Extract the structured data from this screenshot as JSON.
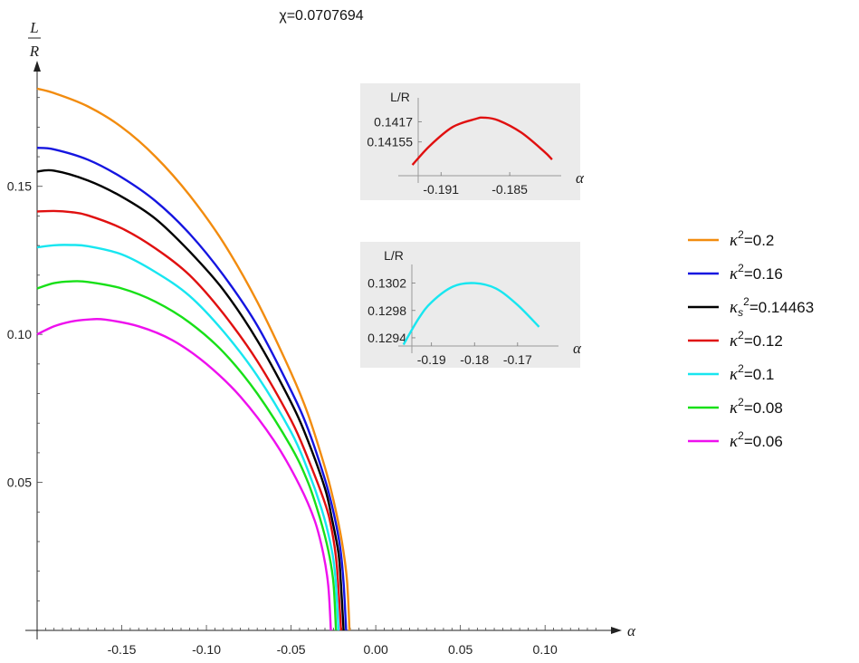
{
  "chart_data": [
    {
      "type": "line",
      "title": "χ=0.0707694",
      "xlabel": "α",
      "ylabel_num": "L",
      "ylabel_den": "R",
      "xlim": [
        -0.2,
        0.14
      ],
      "ylim": [
        0,
        0.19
      ],
      "x_ticks": [
        "-0.15",
        "-0.10",
        "-0.05",
        "0.00",
        "0.05",
        "0.10"
      ],
      "x_tick_values": [
        -0.15,
        -0.1,
        -0.05,
        0.0,
        0.05,
        0.1
      ],
      "y_ticks": [
        "0.05",
        "0.10",
        "0.15"
      ],
      "y_tick_values": [
        0.05,
        0.1,
        0.15
      ],
      "legend_position": "right",
      "series": [
        {
          "name": "κ²=0.2",
          "label_main": "κ",
          "label_sub": "",
          "label_sup": "2",
          "label_rest": "=0.2",
          "color": "#F28C0F",
          "x": [
            -0.2,
            -0.19,
            -0.17,
            -0.15,
            -0.13,
            -0.11,
            -0.09,
            -0.07,
            -0.05,
            -0.04,
            -0.03,
            -0.025,
            -0.02,
            -0.017,
            -0.0155
          ],
          "y": [
            0.183,
            0.1815,
            0.177,
            0.17,
            0.16,
            0.147,
            0.131,
            0.111,
            0.087,
            0.073,
            0.055,
            0.044,
            0.03,
            0.017,
            0.0
          ]
        },
        {
          "name": "κ²=0.16",
          "label_main": "κ",
          "label_sub": "",
          "label_sup": "2",
          "label_rest": "=0.16",
          "color": "#1515E0",
          "x": [
            -0.2,
            -0.19,
            -0.17,
            -0.15,
            -0.13,
            -0.11,
            -0.09,
            -0.07,
            -0.05,
            -0.04,
            -0.03,
            -0.025,
            -0.021,
            -0.019,
            -0.0175
          ],
          "y": [
            0.163,
            0.1625,
            0.159,
            0.153,
            0.145,
            0.134,
            0.12,
            0.103,
            0.081,
            0.068,
            0.051,
            0.04,
            0.028,
            0.016,
            0.0
          ]
        },
        {
          "name": "κₛ²=0.14463",
          "label_main": "κ",
          "label_sub": "s",
          "label_sup": "2",
          "label_rest": "=0.14463",
          "color": "#000000",
          "x": [
            -0.2,
            -0.19,
            -0.17,
            -0.15,
            -0.13,
            -0.11,
            -0.09,
            -0.07,
            -0.05,
            -0.04,
            -0.03,
            -0.026,
            -0.022,
            -0.0205,
            -0.019
          ],
          "y": [
            0.155,
            0.1553,
            0.152,
            0.1465,
            0.139,
            0.128,
            0.115,
            0.098,
            0.077,
            0.064,
            0.048,
            0.038,
            0.026,
            0.015,
            0.0
          ]
        },
        {
          "name": "κ²=0.12",
          "label_main": "κ",
          "label_sub": "",
          "label_sup": "2",
          "label_rest": "=0.12",
          "color": "#E01010",
          "x": [
            -0.2,
            -0.19,
            -0.18,
            -0.17,
            -0.15,
            -0.13,
            -0.11,
            -0.09,
            -0.07,
            -0.05,
            -0.04,
            -0.03,
            -0.026,
            -0.023,
            -0.0205
          ],
          "y": [
            0.1415,
            0.1417,
            0.1413,
            0.1402,
            0.1358,
            0.129,
            0.12,
            0.107,
            0.091,
            0.071,
            0.058,
            0.043,
            0.034,
            0.022,
            0.0
          ]
        },
        {
          "name": "κ²=0.1",
          "label_main": "κ",
          "label_sub": "",
          "label_sup": "2",
          "label_rest": "=0.1",
          "color": "#18E6F0",
          "x": [
            -0.2,
            -0.19,
            -0.18,
            -0.17,
            -0.15,
            -0.13,
            -0.11,
            -0.09,
            -0.07,
            -0.05,
            -0.04,
            -0.032,
            -0.027,
            -0.024,
            -0.022
          ],
          "y": [
            0.1294,
            0.1301,
            0.1302,
            0.1298,
            0.127,
            0.121,
            0.113,
            0.101,
            0.086,
            0.067,
            0.054,
            0.041,
            0.03,
            0.019,
            0.0
          ]
        },
        {
          "name": "κ²=0.08",
          "label_main": "κ",
          "label_sub": "",
          "label_sup": "2",
          "label_rest": "=0.08",
          "color": "#18E018",
          "x": [
            -0.2,
            -0.19,
            -0.18,
            -0.17,
            -0.15,
            -0.13,
            -0.11,
            -0.09,
            -0.07,
            -0.05,
            -0.04,
            -0.033,
            -0.028,
            -0.025,
            -0.0235
          ],
          "y": [
            0.1155,
            0.1173,
            0.1179,
            0.1177,
            0.1155,
            0.111,
            0.104,
            0.094,
            0.08,
            0.062,
            0.05,
            0.038,
            0.027,
            0.016,
            0.0
          ]
        },
        {
          "name": "κ²=0.06",
          "label_main": "κ",
          "label_sub": "",
          "label_sup": "2",
          "label_rest": "=0.06",
          "color": "#EE10EE",
          "x": [
            -0.2,
            -0.19,
            -0.18,
            -0.17,
            -0.16,
            -0.14,
            -0.12,
            -0.1,
            -0.08,
            -0.06,
            -0.045,
            -0.036,
            -0.031,
            -0.028,
            -0.0265
          ],
          "y": [
            0.1,
            0.1027,
            0.1043,
            0.105,
            0.105,
            0.1027,
            0.098,
            0.09,
            0.079,
            0.064,
            0.049,
            0.037,
            0.026,
            0.015,
            0.0
          ]
        }
      ]
    },
    {
      "type": "line",
      "title": "",
      "ylabel": "L/R",
      "xlabel": "α",
      "xlim": [
        -0.1945,
        -0.1805
      ],
      "ylim": [
        0.1413,
        0.14185
      ],
      "x_ticks": [
        "-0.191",
        "-0.185"
      ],
      "x_tick_values": [
        -0.191,
        -0.185
      ],
      "y_ticks": [
        "0.14155",
        "0.1417"
      ],
      "y_tick_values": [
        0.14155,
        0.1417
      ],
      "series": [
        {
          "color": "#E01010",
          "x": [
            -0.1935,
            -0.192,
            -0.19,
            -0.188,
            -0.1872,
            -0.186,
            -0.184,
            -0.182,
            -0.1813
          ],
          "y": [
            0.14138,
            0.14152,
            0.14166,
            0.14172,
            0.14173,
            0.14171,
            0.14162,
            0.14148,
            0.14142
          ]
        }
      ]
    },
    {
      "type": "line",
      "title": "",
      "ylabel": "L/R",
      "xlabel": "α",
      "xlim": [
        -0.1975,
        -0.1605
      ],
      "ylim": [
        0.12928,
        0.13042
      ],
      "x_ticks": [
        "-0.19",
        "-0.18",
        "-0.17"
      ],
      "x_tick_values": [
        -0.19,
        -0.18,
        -0.17
      ],
      "y_ticks": [
        "0.1294",
        "0.1298",
        "0.1302"
      ],
      "y_tick_values": [
        0.1294,
        0.1298,
        0.1302
      ],
      "series": [
        {
          "color": "#18E6F0",
          "x": [
            -0.1965,
            -0.193,
            -0.19,
            -0.185,
            -0.18,
            -0.175,
            -0.17,
            -0.165
          ],
          "y": [
            0.1293,
            0.12968,
            0.12992,
            0.13015,
            0.1302,
            0.13012,
            0.12988,
            0.12956
          ]
        }
      ]
    }
  ]
}
